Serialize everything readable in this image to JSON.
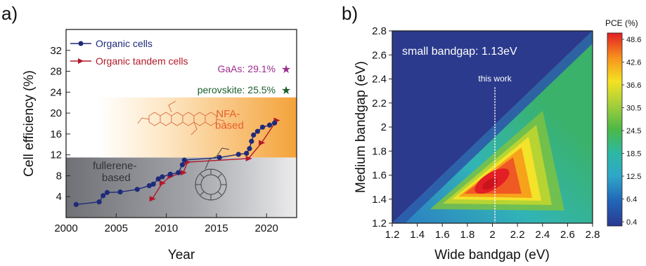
{
  "panels": {
    "a": {
      "label": "a)"
    },
    "b": {
      "label": "b)"
    }
  },
  "colors": {
    "organic": "#1f2a7a",
    "tandem": "#b3182a",
    "gaas": "#9b2d8f",
    "perovskite": "#1b5e2b",
    "nfa_region": "#f5a623",
    "fullerene_region": "#8d8f94",
    "nfa_text": "#e8602c",
    "heatmap_bg": "#2b3a8c"
  },
  "chart_data": [
    {
      "type": "line",
      "xlabel": "Year",
      "ylabel": "Cell efficiency (%)",
      "xlim": [
        2000,
        2023
      ],
      "ylim": [
        0,
        36
      ],
      "xticks": [
        2000,
        2005,
        2010,
        2015,
        2020
      ],
      "yticks": [
        4,
        8,
        12,
        16,
        20,
        24,
        28,
        32
      ],
      "series": [
        {
          "name": "Organic cells",
          "marker": "circle",
          "points": [
            [
              2001,
              2.5
            ],
            [
              2003.3,
              3.0
            ],
            [
              2003.7,
              4.2
            ],
            [
              2004.1,
              4.8
            ],
            [
              2005.4,
              4.9
            ],
            [
              2007.1,
              5.4
            ],
            [
              2008.3,
              6.1
            ],
            [
              2008.7,
              6.4
            ],
            [
              2009.2,
              7.4
            ],
            [
              2009.6,
              7.8
            ],
            [
              2010.4,
              8.3
            ],
            [
              2011.2,
              8.6
            ],
            [
              2011.6,
              10.1
            ],
            [
              2011.8,
              11.0
            ],
            [
              2015.3,
              11.5
            ],
            [
              2017.2,
              12.1
            ],
            [
              2018.0,
              12.3
            ],
            [
              2018.3,
              13.2
            ],
            [
              2018.5,
              14.6
            ],
            [
              2018.7,
              15.8
            ],
            [
              2019.1,
              16.5
            ],
            [
              2019.6,
              17.3
            ],
            [
              2020.3,
              17.7
            ],
            [
              2020.8,
              18.1
            ]
          ]
        },
        {
          "name": "Organic tandem cells",
          "marker": "triangle",
          "points": [
            [
              2008.6,
              3.6
            ],
            [
              2009.6,
              6.6
            ],
            [
              2010.4,
              7.9
            ],
            [
              2011.7,
              8.6
            ],
            [
              2012.1,
              10.6
            ],
            [
              2018.2,
              11.3
            ],
            [
              2019.5,
              14.3
            ],
            [
              2021.0,
              18.6
            ]
          ]
        }
      ],
      "regions": [
        {
          "name": "fullerene-based",
          "label_lines": [
            "fullerene-",
            "based"
          ],
          "ymin": 0,
          "ymax": 11.5
        },
        {
          "name": "NFA-based",
          "label_lines": [
            "NFA-",
            "based"
          ],
          "ymin": 11.5,
          "ymax": 23
        }
      ],
      "annotations": [
        {
          "text": "GaAs: 29.1%",
          "marker": "star",
          "color_key": "gaas"
        },
        {
          "text": "perovskite: 25.5%",
          "marker": "star",
          "color_key": "perovskite"
        }
      ],
      "legend": "top-left"
    },
    {
      "type": "heatmap",
      "xlabel": "Wide bandgap (eV)",
      "ylabel": "Medium bandgap (eV)",
      "xlim": [
        1.2,
        2.8
      ],
      "ylim": [
        1.2,
        2.8
      ],
      "xticks": [
        "1.2",
        "1.4",
        "1.6",
        "1.8",
        "2",
        "2.2",
        "2.4",
        "2.6",
        "2.8"
      ],
      "yticks": [
        "1.2",
        "1.4",
        "1.6",
        "1.8",
        "2",
        "2.2",
        "2.4",
        "2.6",
        "2.8"
      ],
      "annotation": "small bandgap: 1.13eV",
      "marker_line": {
        "x": 2.02,
        "label": "this work"
      },
      "colorbar": {
        "title": "PCE (%)",
        "ticks": [
          "48.6",
          "42.6",
          "36.6",
          "30.5",
          "24.5",
          "18.5",
          "12.5",
          "6.4",
          "0.4"
        ]
      },
      "peak": {
        "x": 2.02,
        "y": 1.48,
        "value": 48.6
      }
    }
  ]
}
